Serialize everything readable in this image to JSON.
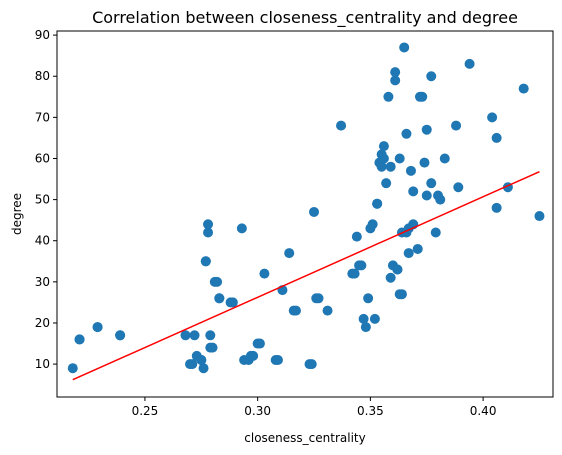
{
  "chart_data": {
    "type": "scatter",
    "title": "Correlation between closeness_centrality and degree",
    "xlabel": "closeness_centrality",
    "ylabel": "degree",
    "xlim": [
      0.211,
      0.431
    ],
    "ylim": [
      2,
      91
    ],
    "xticks": [
      0.25,
      0.3,
      0.35,
      0.4
    ],
    "xtick_labels": [
      "0.25",
      "0.30",
      "0.35",
      "0.40"
    ],
    "yticks": [
      10,
      20,
      30,
      40,
      50,
      60,
      70,
      80,
      90
    ],
    "ytick_labels": [
      "10",
      "20",
      "30",
      "40",
      "50",
      "60",
      "70",
      "80",
      "90"
    ],
    "grid": false,
    "colors": {
      "points": "#1f77b4",
      "fit_line": "#ff0000"
    },
    "series": [
      {
        "kind": "scatter",
        "x": [
          0.218,
          0.221,
          0.221,
          0.229,
          0.229,
          0.239,
          0.239,
          0.268,
          0.27,
          0.271,
          0.272,
          0.273,
          0.275,
          0.275,
          0.276,
          0.277,
          0.277,
          0.278,
          0.278,
          0.279,
          0.279,
          0.28,
          0.281,
          0.282,
          0.283,
          0.283,
          0.288,
          0.289,
          0.293,
          0.294,
          0.296,
          0.297,
          0.298,
          0.3,
          0.301,
          0.303,
          0.308,
          0.309,
          0.311,
          0.314,
          0.316,
          0.317,
          0.323,
          0.324,
          0.325,
          0.326,
          0.327,
          0.331,
          0.337,
          0.342,
          0.343,
          0.344,
          0.345,
          0.346,
          0.347,
          0.348,
          0.349,
          0.35,
          0.351,
          0.352,
          0.353,
          0.353,
          0.354,
          0.355,
          0.355,
          0.356,
          0.356,
          0.357,
          0.358,
          0.359,
          0.359,
          0.36,
          0.361,
          0.361,
          0.362,
          0.362,
          0.363,
          0.363,
          0.364,
          0.364,
          0.365,
          0.366,
          0.366,
          0.367,
          0.367,
          0.368,
          0.369,
          0.369,
          0.371,
          0.372,
          0.373,
          0.374,
          0.375,
          0.375,
          0.377,
          0.377,
          0.379,
          0.38,
          0.381,
          0.383,
          0.388,
          0.389,
          0.394,
          0.404,
          0.406,
          0.406,
          0.411,
          0.418,
          0.425
        ],
        "y": [
          9,
          16,
          16,
          19,
          19,
          17,
          17,
          17,
          10,
          10,
          17,
          12,
          11,
          11,
          9,
          35,
          35,
          42,
          44,
          17,
          14,
          14,
          30,
          30,
          26,
          26,
          25,
          25,
          43,
          11,
          11,
          12,
          12,
          15,
          15,
          32,
          11,
          11,
          28,
          37,
          23,
          23,
          10,
          10,
          47,
          26,
          26,
          23,
          68,
          32,
          32,
          41,
          34,
          34,
          21,
          19,
          26,
          43,
          44,
          21,
          49,
          49,
          59,
          58,
          61,
          60,
          63,
          54,
          75,
          31,
          58,
          34,
          79,
          81,
          33,
          33,
          60,
          27,
          42,
          27,
          87,
          66,
          42,
          43,
          37,
          57,
          44,
          52,
          38,
          75,
          75,
          59,
          51,
          67,
          80,
          54,
          42,
          51,
          50,
          60,
          68,
          53,
          83,
          70,
          65,
          48,
          53,
          77,
          46
        ]
      },
      {
        "kind": "line",
        "name": "",
        "x": [
          0.218,
          0.425
        ],
        "y": [
          6.2,
          56.8
        ]
      }
    ]
  }
}
